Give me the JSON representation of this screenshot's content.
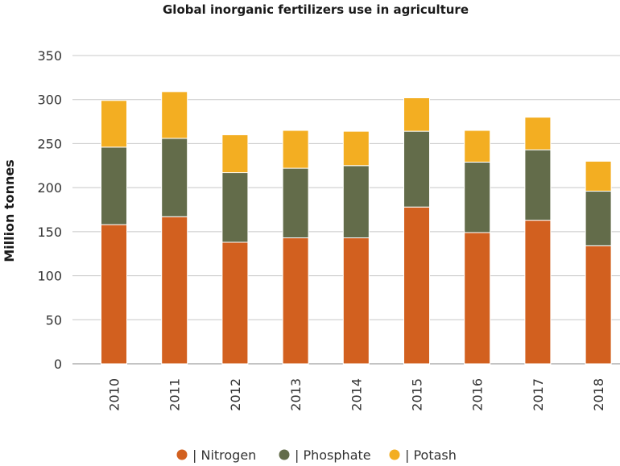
{
  "chart_data": {
    "type": "bar",
    "stacked": true,
    "title": "Global inorganic fertilizers use in agriculture",
    "xlabel": "",
    "ylabel": "Million tonnes",
    "ylim": [
      0,
      350
    ],
    "yticks": [
      0,
      50,
      100,
      150,
      200,
      250,
      300,
      350
    ],
    "grid": true,
    "legend_position": "bottom",
    "categories": [
      "2010",
      "2011",
      "2012",
      "2013",
      "2014",
      "2015",
      "2016",
      "2017",
      "2018"
    ],
    "series": [
      {
        "name": "| Nitrogen",
        "color": "#D2601F",
        "values": [
          158,
          167,
          138,
          143,
          143,
          178,
          149,
          163,
          134
        ]
      },
      {
        "name": "| Phosphate",
        "color": "#636C4A",
        "values": [
          88,
          89,
          79,
          79,
          82,
          86,
          80,
          80,
          62
        ]
      },
      {
        "name": "| Potash",
        "color": "#F3AE22",
        "values": [
          53,
          53,
          43,
          43,
          39,
          38,
          36,
          37,
          34
        ]
      }
    ]
  }
}
